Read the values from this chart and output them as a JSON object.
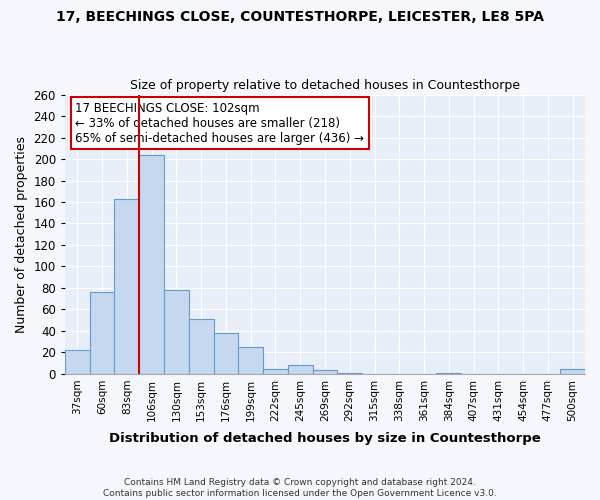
{
  "title1": "17, BEECHINGS CLOSE, COUNTESTHORPE, LEICESTER, LE8 5PA",
  "title2": "Size of property relative to detached houses in Countesthorpe",
  "xlabel": "Distribution of detached houses by size in Countesthorpe",
  "ylabel": "Number of detached properties",
  "footer1": "Contains HM Land Registry data © Crown copyright and database right 2024.",
  "footer2": "Contains public sector information licensed under the Open Government Licence v3.0.",
  "bar_color": "#c5d8f0",
  "bar_edge_color": "#6699cc",
  "bg_color": "#e8eef8",
  "fig_bg_color": "#f5f7fc",
  "grid_color": "#ffffff",
  "annotation_box_color": "#cc0000",
  "vline_color": "#cc0000",
  "categories": [
    "37sqm",
    "60sqm",
    "83sqm",
    "106sqm",
    "130sqm",
    "153sqm",
    "176sqm",
    "199sqm",
    "222sqm",
    "245sqm",
    "269sqm",
    "292sqm",
    "315sqm",
    "338sqm",
    "361sqm",
    "384sqm",
    "407sqm",
    "431sqm",
    "454sqm",
    "477sqm",
    "500sqm"
  ],
  "values": [
    22,
    76,
    163,
    204,
    78,
    51,
    38,
    25,
    5,
    8,
    4,
    1,
    0,
    0,
    0,
    1,
    0,
    0,
    0,
    0,
    5
  ],
  "property_label": "17 BEECHINGS CLOSE: 102sqm",
  "annot_line1": "← 33% of detached houses are smaller (218)",
  "annot_line2": "65% of semi-detached houses are larger (436) →",
  "vline_x_index": 3,
  "ylim": [
    0,
    260
  ],
  "yticks": [
    0,
    20,
    40,
    60,
    80,
    100,
    120,
    140,
    160,
    180,
    200,
    220,
    240,
    260
  ]
}
